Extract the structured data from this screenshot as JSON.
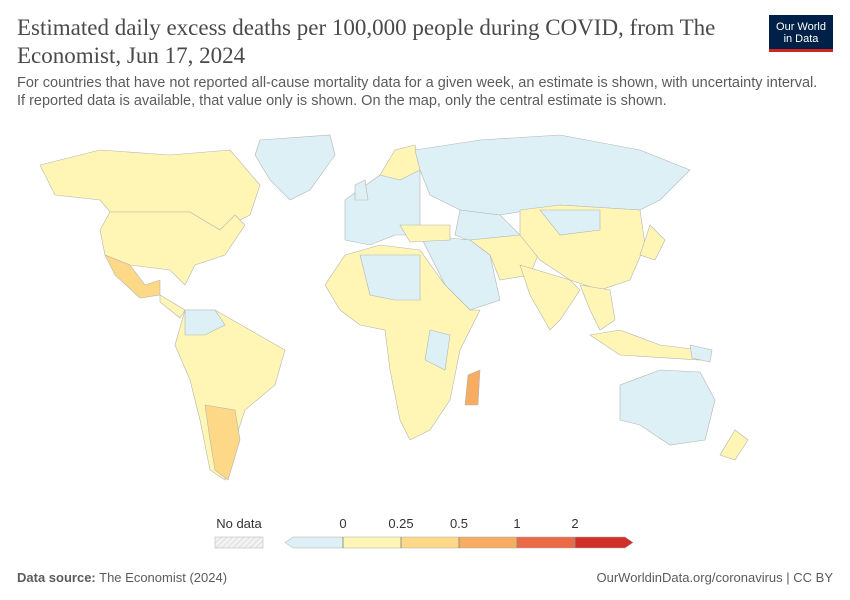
{
  "header": {
    "title": "Estimated daily excess deaths per 100,000 people during COVID, from The Economist, Jun 17, 2024",
    "subtitle": "For countries that have not reported all-cause mortality data for a given week, an estimate is shown, with uncertainty interval. If reported data is available, that value only is shown. On the map, only the central estimate is shown.",
    "logo_line1": "Our World",
    "logo_line2": "in Data"
  },
  "legend": {
    "no_data": "No data",
    "ticks": [
      0,
      0.25,
      0.5,
      1,
      2
    ],
    "colors": [
      "#dcf0f5",
      "#fff5b4",
      "#fdd887",
      "#f8ac62",
      "#ea6a45",
      "#d12f2a"
    ]
  },
  "footer": {
    "source_label": "Data source:",
    "source": "The Economist (2024)",
    "link": "OurWorldinData.org/coronavirus | CC BY"
  }
}
